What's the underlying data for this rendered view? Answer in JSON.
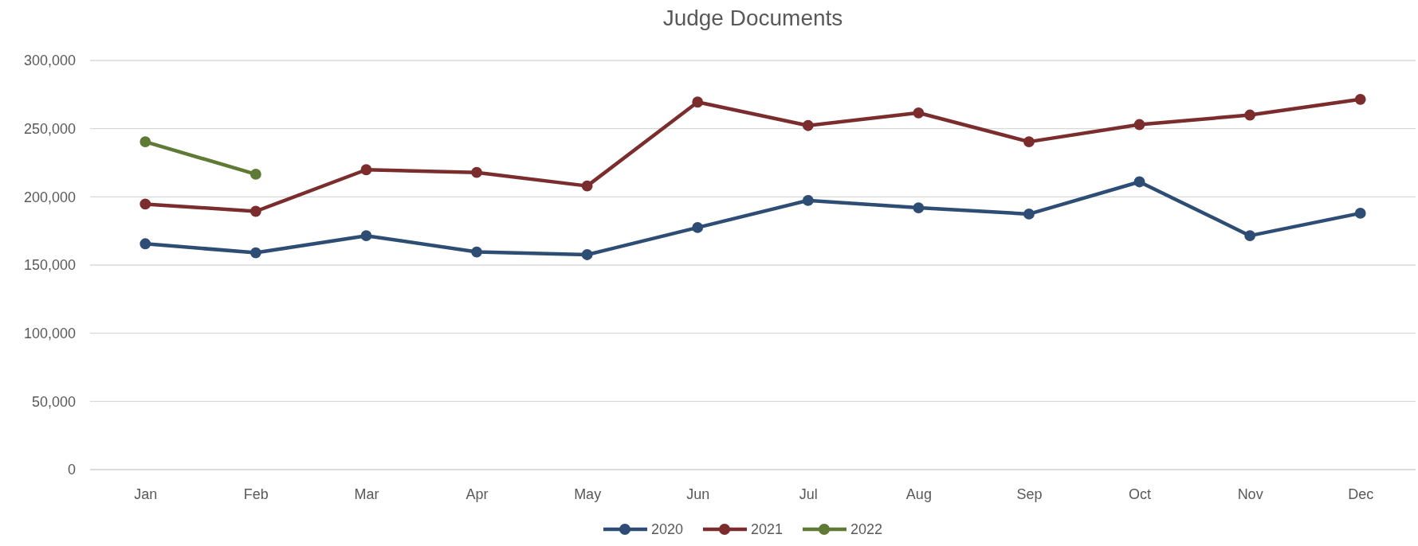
{
  "chart_data": {
    "type": "line",
    "title": "Judge Documents",
    "categories": [
      "Jan",
      "Feb",
      "Mar",
      "Apr",
      "May",
      "Jun",
      "Jul",
      "Aug",
      "Sep",
      "Oct",
      "Nov",
      "Dec"
    ],
    "series": [
      {
        "name": "2020",
        "color": "#2e4d74",
        "values": [
          165600,
          159000,
          171500,
          159600,
          157600,
          177500,
          197400,
          192000,
          187400,
          211000,
          171500,
          188000
        ]
      },
      {
        "name": "2021",
        "color": "#7b2c2c",
        "values": [
          194700,
          189400,
          219900,
          217900,
          208000,
          269500,
          252300,
          261600,
          240400,
          253000,
          260000,
          271500
        ]
      },
      {
        "name": "2022",
        "color": "#5f7a34",
        "values": [
          240400,
          216600,
          null,
          null,
          null,
          null,
          null,
          null,
          null,
          null,
          null,
          null
        ]
      }
    ],
    "ylim": [
      0,
      300000
    ],
    "yticks": [
      0,
      {
        "value": 50000,
        "label": "50,000"
      },
      {
        "value": 100000,
        "label": "100,000"
      },
      {
        "value": 150000,
        "label": "150,000"
      },
      {
        "value": 200000,
        "label": "200,000"
      },
      {
        "value": 250000,
        "label": "250,000"
      },
      {
        "value": 300000,
        "label": "300,000"
      }
    ],
    "grid": "y",
    "legend": "bottom",
    "marker": "circle",
    "line_style": "solid"
  }
}
